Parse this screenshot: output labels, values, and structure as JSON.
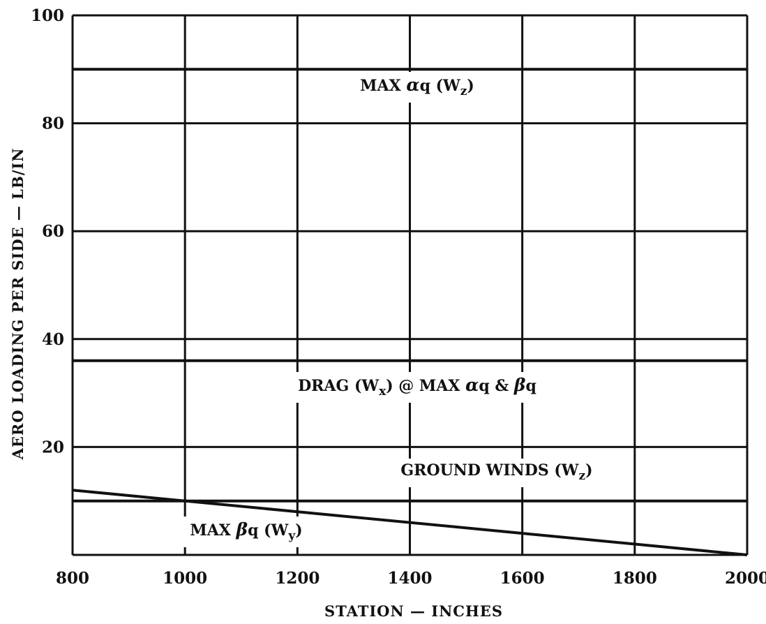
{
  "chart_data": {
    "type": "line",
    "title": "",
    "xlabel": "STATION — INCHES",
    "ylabel": "AERO LOADING PER SIDE — LB/IN",
    "xlim": [
      800,
      2000
    ],
    "ylim": [
      0,
      100
    ],
    "x_ticks": [
      800,
      1000,
      1200,
      1400,
      1600,
      1800,
      2000
    ],
    "y_ticks": [
      20,
      40,
      60,
      80,
      100
    ],
    "grid": true,
    "legend": "none",
    "series": [
      {
        "name": "MAX αq (Wz)",
        "x": [
          800,
          2000
        ],
        "y": [
          90,
          90
        ],
        "label": {
          "prefix": "MAX ",
          "greek": "α",
          "rest": "q (W",
          "sub": "z",
          "suffix": ")"
        }
      },
      {
        "name": "DRAG (Wx) @ MAX αq & βq",
        "x": [
          800,
          2000
        ],
        "y": [
          36,
          36
        ],
        "label": {
          "prefix": "DRAG (W",
          "sub": "x",
          "mid": ") @ MAX ",
          "greek": "α",
          "rest": "q & ",
          "greek2": "β",
          "suffix": "q"
        }
      },
      {
        "name": "GROUND WINDS (Wz)",
        "x": [
          800,
          2000
        ],
        "y": [
          10,
          10
        ],
        "label": {
          "prefix": "GROUND WINDS (W",
          "sub": "z",
          "suffix": ")"
        }
      },
      {
        "name": "MAX βq (Wy)",
        "x": [
          800,
          2000
        ],
        "y": [
          12,
          0
        ],
        "label": {
          "prefix": "MAX ",
          "greek": "β",
          "rest": "q (W",
          "sub": "y",
          "suffix": ")"
        }
      }
    ],
    "color": "#111111"
  }
}
